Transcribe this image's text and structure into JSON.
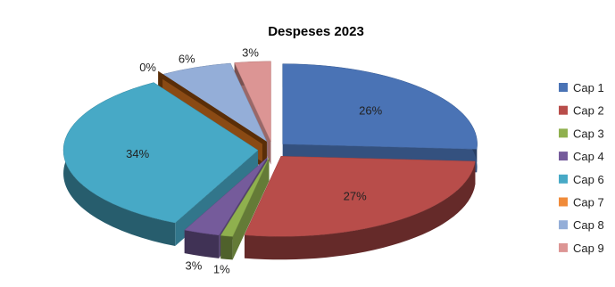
{
  "chart_data": {
    "type": "pie",
    "title": "Despeses 2023",
    "legend_position": "right",
    "categories": [
      "Cap 1",
      "Cap 2",
      "Cap 3",
      "Cap 4",
      "Cap 6",
      "Cap 7",
      "Cap 8",
      "Cap 9"
    ],
    "values": [
      26,
      27,
      1,
      3,
      34,
      0,
      6,
      3
    ],
    "labels": [
      "26%",
      "27%",
      "1%",
      "3%",
      "34%",
      "0%",
      "6%",
      "3%"
    ],
    "colors": [
      "#4a73b5",
      "#b84d4a",
      "#8fb04e",
      "#755b9b",
      "#47a9c6",
      "#f08b3a",
      "#94aed8",
      "#dc9594"
    ]
  }
}
